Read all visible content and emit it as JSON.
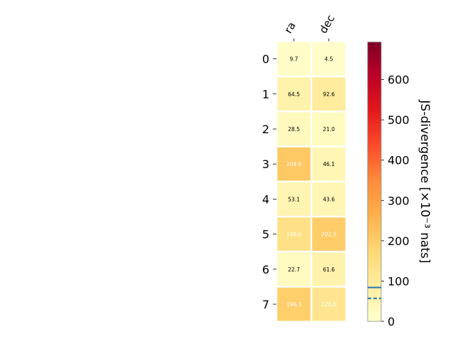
{
  "chart_data": {
    "type": "heatmap",
    "columns": [
      "ra",
      "dec"
    ],
    "rows": [
      "0",
      "1",
      "2",
      "3",
      "4",
      "5",
      "6",
      "7"
    ],
    "values": [
      [
        9.7,
        4.5
      ],
      [
        64.5,
        92.6
      ],
      [
        28.5,
        21.0
      ],
      [
        209.6,
        46.1
      ],
      [
        53.1,
        43.6
      ],
      [
        140.0,
        202.5
      ],
      [
        22.7,
        61.6
      ],
      [
        196.3,
        120.6
      ]
    ],
    "value_labels": [
      [
        "9.7",
        "4.5"
      ],
      [
        "64.5",
        "92.6"
      ],
      [
        "28.5",
        "21.0"
      ],
      [
        "209.6",
        "46.1"
      ],
      [
        "53.1",
        "43.6"
      ],
      [
        "140.0",
        "202.5"
      ],
      [
        "22.7",
        "61.6"
      ],
      [
        "196.3",
        "120.6"
      ]
    ],
    "colorbar": {
      "label": "JS-divergence [×10⁻³ nats]",
      "range": [
        0,
        693
      ],
      "ticks": [
        0,
        100,
        200,
        300,
        400,
        500,
        600
      ],
      "colormap": "YlOrRd",
      "solid_line_value": 84,
      "dashed_line_value": 57,
      "line_color": "#1f77b4"
    }
  }
}
